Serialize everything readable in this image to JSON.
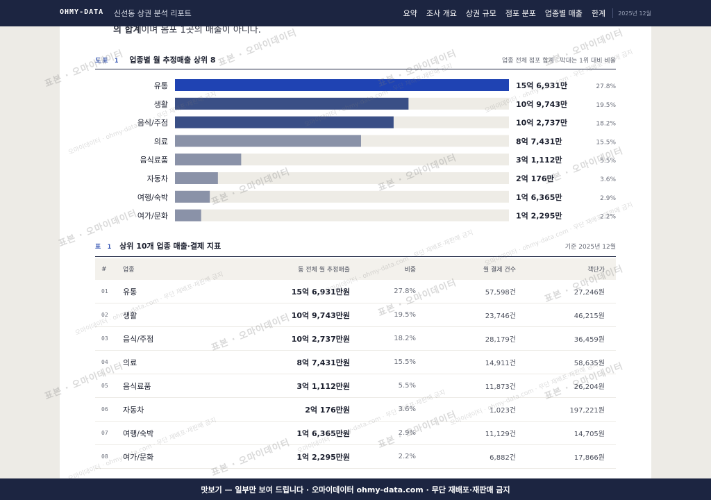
{
  "header": {
    "brand": "OHMY-DATA",
    "subtitle": "신선동 상권 분석 리포트",
    "nav": [
      "요약",
      "조사 개요",
      "상권 규모",
      "점포 분포",
      "업종별 매출",
      "한계"
    ],
    "date": "2025년 12월"
  },
  "intro_cut": {
    "bold": "의 합계",
    "rest": "이며 몸포 1곳의 매출이 아니다."
  },
  "figure": {
    "tag": "도표 1",
    "title": "업종별 월 추정매출 상위 8",
    "note": "업종 전체 점포 합계 · 막대는 1위 대비 비율"
  },
  "chart_data": {
    "type": "bar",
    "orientation": "horizontal",
    "title": "업종별 월 추정매출 상위 8",
    "categories": [
      "유통",
      "생활",
      "음식/주점",
      "의료",
      "음식료품",
      "자동차",
      "여행/숙박",
      "여가/문화"
    ],
    "values": [
      1569310000,
      1097430000,
      1027370000,
      874310000,
      311120000,
      201760000,
      163650000,
      122950000
    ],
    "value_labels": [
      "15억 6,931만",
      "10억 9,743만",
      "10억 2,737만",
      "8억 7,431만",
      "3억 1,112만",
      "2억 176만",
      "1억 6,365만",
      "1억 2,295만"
    ],
    "shares": [
      "27.8%",
      "19.5%",
      "18.2%",
      "15.5%",
      "5.5%",
      "3.6%",
      "2.9%",
      "2.2%"
    ],
    "colors": [
      "#1f43b3",
      "#3a4f86",
      "#3a4f86",
      "#8a92a8",
      "#8a92a8",
      "#8a92a8",
      "#8a92a8",
      "#8a92a8"
    ],
    "track_color": "#eeece6",
    "xlim": [
      0,
      1569310000
    ]
  },
  "table": {
    "tag": "표 1",
    "title": "상위 10개 업종 매출·결제 지표",
    "note": "기준 2025년 12월",
    "headers": {
      "idx": "#",
      "name": "업종",
      "sales": "동 전체 월 추정매출",
      "share": "비중",
      "count": "월 결제 건수",
      "avg": "객단가"
    },
    "rows": [
      {
        "idx": "01",
        "name": "유통",
        "sales": "15억 6,931만원",
        "share": "27.8%",
        "count": "57,598건",
        "avg": "27,246원"
      },
      {
        "idx": "02",
        "name": "생활",
        "sales": "10억 9,743만원",
        "share": "19.5%",
        "count": "23,746건",
        "avg": "46,215원"
      },
      {
        "idx": "03",
        "name": "음식/주점",
        "sales": "10억 2,737만원",
        "share": "18.2%",
        "count": "28,179건",
        "avg": "36,459원"
      },
      {
        "idx": "04",
        "name": "의료",
        "sales": "8억 7,431만원",
        "share": "15.5%",
        "count": "14,911건",
        "avg": "58,635원"
      },
      {
        "idx": "05",
        "name": "음식료품",
        "sales": "3억 1,112만원",
        "share": "5.5%",
        "count": "11,873건",
        "avg": "26,204원"
      },
      {
        "idx": "06",
        "name": "자동차",
        "sales": "2억 176만원",
        "share": "3.6%",
        "count": "1,023건",
        "avg": "197,221원"
      },
      {
        "idx": "07",
        "name": "여행/숙박",
        "sales": "1억 6,365만원",
        "share": "2.9%",
        "count": "11,129건",
        "avg": "14,705원"
      },
      {
        "idx": "08",
        "name": "여가/문화",
        "sales": "1억 2,295만원",
        "share": "2.2%",
        "count": "6,882건",
        "avg": "17,866원"
      }
    ]
  },
  "watermark": {
    "main": "표본 · 오마이데이터",
    "small": "오마이데이터 · ohmy-data.com · 무단 재배포·재판매 금지"
  },
  "footer": {
    "text": "맛보기 — 일부만 보여 드립니다 · 오마이데이터 ohmy-data.com · 무단 재배포·재판매 금지"
  }
}
